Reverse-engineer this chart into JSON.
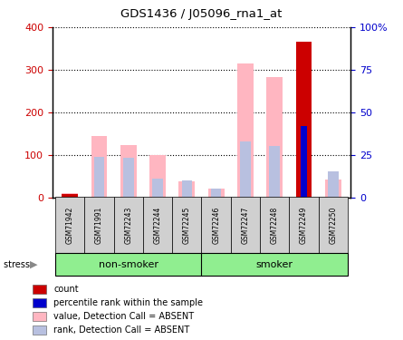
{
  "title": "GDS1436 / J05096_rna1_at",
  "samples": [
    "GSM71942",
    "GSM71991",
    "GSM72243",
    "GSM72244",
    "GSM72245",
    "GSM72246",
    "GSM72247",
    "GSM72248",
    "GSM72249",
    "GSM72250"
  ],
  "value_absent": [
    10,
    145,
    122,
    100,
    38,
    20,
    315,
    283,
    0,
    42
  ],
  "rank_absent_pct": [
    2,
    24,
    23,
    11,
    10,
    5,
    33,
    30,
    0,
    15
  ],
  "count_value": [
    8,
    0,
    0,
    0,
    0,
    0,
    0,
    0,
    365,
    0
  ],
  "percentile_rank_pct": [
    0,
    0,
    0,
    0,
    0,
    0,
    0,
    0,
    42,
    0
  ],
  "ylim_left": [
    0,
    400
  ],
  "ylim_right": [
    0,
    100
  ],
  "yticks_left": [
    0,
    100,
    200,
    300,
    400
  ],
  "yticks_right": [
    0,
    25,
    50,
    75,
    100
  ],
  "ytick_labels_right": [
    "0",
    "25",
    "50",
    "75",
    "100%"
  ],
  "color_value_absent": "#ffb6c1",
  "color_rank_absent": "#b8c0e0",
  "color_count": "#cc0000",
  "color_percentile": "#0000cc",
  "left_yaxis_color": "#cc0000",
  "right_yaxis_color": "#0000cc",
  "group_box_color": "#90ee90",
  "sample_box_color": "#d0d0d0",
  "legend_items": [
    {
      "color": "#cc0000",
      "label": "count"
    },
    {
      "color": "#0000cc",
      "label": "percentile rank within the sample"
    },
    {
      "color": "#ffb6c1",
      "label": "value, Detection Call = ABSENT"
    },
    {
      "color": "#b8c0e0",
      "label": "rank, Detection Call = ABSENT"
    }
  ],
  "non_smoker_indices": [
    0,
    1,
    2,
    3,
    4
  ],
  "smoker_indices": [
    5,
    6,
    7,
    8,
    9
  ]
}
